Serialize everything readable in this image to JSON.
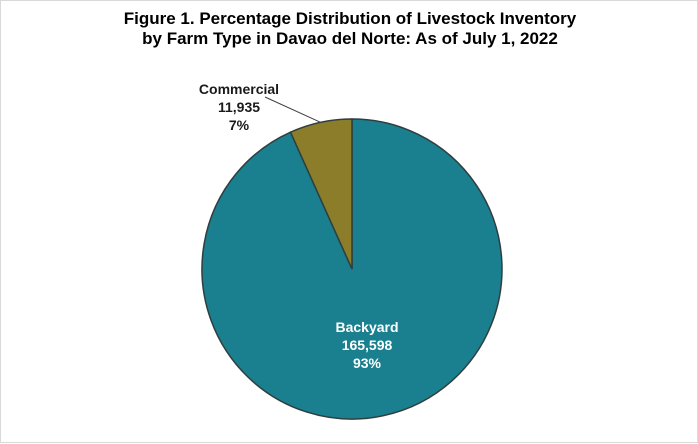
{
  "chart_data": {
    "type": "pie",
    "title_line1": "Figure 1. Percentage Distribution of Livestock Inventory",
    "title_line2": "by Farm Type in Davao del Norte: As of July 1, 2022",
    "slices": [
      {
        "label": "Backyard",
        "value": 165598,
        "value_label": "165,598",
        "percent": 93,
        "percent_label": "93%",
        "color": "#1a7f8e"
      },
      {
        "label": "Commercial",
        "value": 11935,
        "value_label": "11,935",
        "percent": 7,
        "percent_label": "7%",
        "color": "#8b7d2a"
      }
    ],
    "stroke_color": "#2f3f3f"
  }
}
